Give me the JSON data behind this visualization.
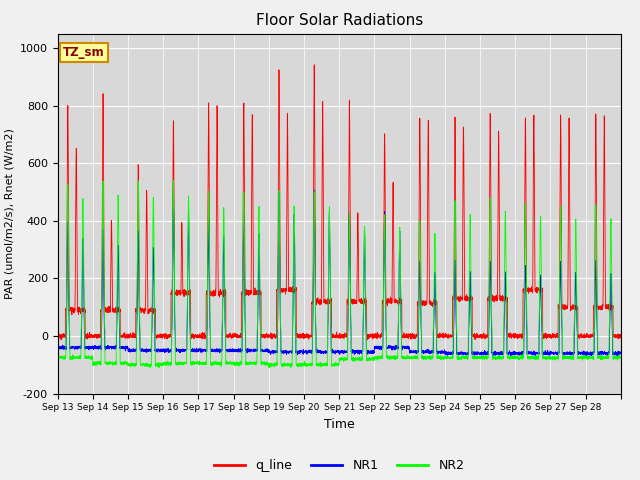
{
  "title": "Floor Solar Radiations",
  "xlabel": "Time",
  "ylabel": "PAR (umol/m2/s), Rnet (W/m2)",
  "ylim": [
    -200,
    1050
  ],
  "background_color": "#d8d8d8",
  "figure_background": "#f0f0f0",
  "grid_color": "#ffffff",
  "label_box": "TZ_sm",
  "label_box_color": "#ffff99",
  "label_box_border": "#cc8800",
  "legend_labels": [
    "q_line",
    "NR1",
    "NR2"
  ],
  "legend_colors": [
    "red",
    "blue",
    "lime"
  ],
  "yticks": [
    -200,
    0,
    200,
    400,
    600,
    800,
    1000
  ],
  "xtick_labels": [
    "Sep 13",
    "Sep 14",
    "Sep 15",
    "Sep 16",
    "Sep 17",
    "Sep 18",
    "Sep 19",
    "Sep 20",
    "Sep 21",
    "Sep 22",
    "Sep 23",
    "Sep 24",
    "Sep 25",
    "Sep 26",
    "Sep 27",
    "Sep 28"
  ],
  "days": 16,
  "pts_per_day": 288,
  "q_peaks": [
    800,
    850,
    600,
    750,
    810,
    805,
    930,
    940,
    820,
    700,
    760,
    755,
    770,
    760,
    770,
    780
  ],
  "q_second_peaks": [
    650,
    400,
    510,
    390,
    800,
    775,
    770,
    815,
    430,
    530,
    750,
    730,
    710,
    770,
    760,
    760
  ],
  "nr1_peaks": [
    400,
    370,
    360,
    510,
    410,
    420,
    500,
    505,
    430,
    430,
    260,
    260,
    260,
    250,
    260,
    260
  ],
  "nr2_peaks": [
    530,
    540,
    540,
    540,
    500,
    500,
    500,
    500,
    425,
    420,
    400,
    470,
    480,
    460,
    450,
    455
  ],
  "q_day_level": [
    90,
    90,
    90,
    150,
    150,
    150,
    160,
    120,
    120,
    120,
    115,
    130,
    130,
    160,
    100,
    100
  ],
  "nr1_night": [
    -40,
    -40,
    -50,
    -50,
    -50,
    -50,
    -55,
    -55,
    -55,
    -40,
    -55,
    -60,
    -60,
    -60,
    -60,
    -60
  ],
  "nr2_night": [
    -75,
    -95,
    -100,
    -95,
    -95,
    -95,
    -100,
    -100,
    -80,
    -75,
    -75,
    -75,
    -75,
    -75,
    -75,
    -75
  ]
}
